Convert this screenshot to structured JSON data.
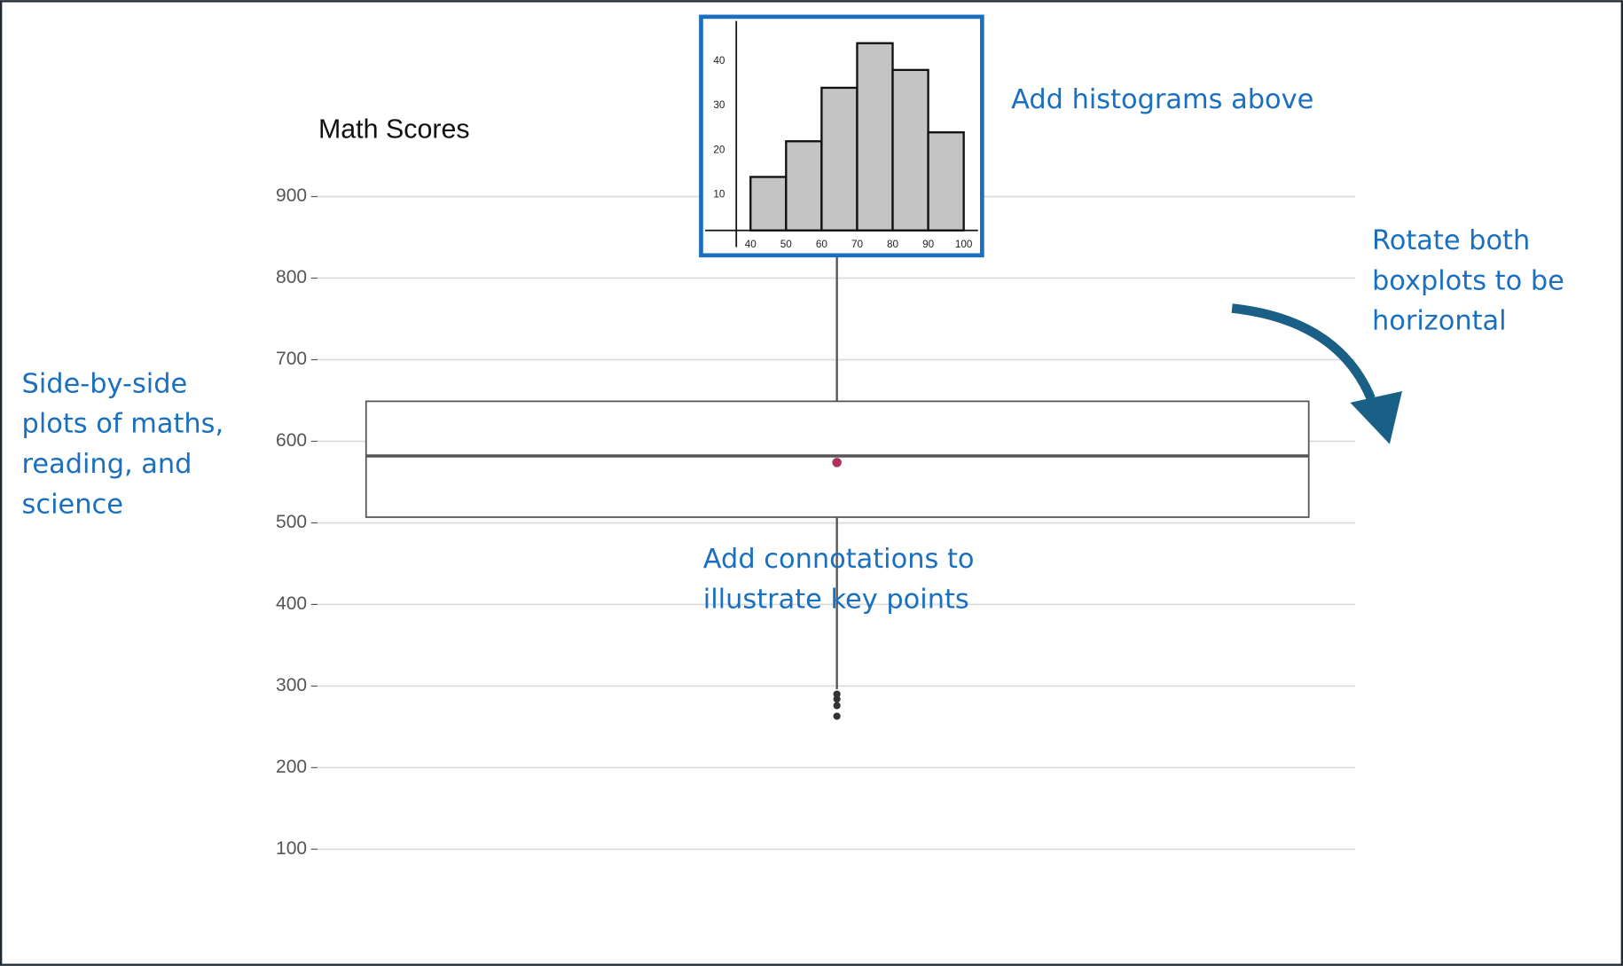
{
  "chart_data": [
    {
      "type": "box",
      "title": "Math Scores",
      "ylim": [
        60,
        950
      ],
      "yticks": [
        100,
        200,
        300,
        400,
        500,
        600,
        700,
        800,
        900
      ],
      "grid": true,
      "q1": 507,
      "median": 582,
      "q3": 649,
      "mean": 574,
      "whisker_low": 296,
      "whisker_high": 850,
      "outliers": [
        290,
        284,
        276,
        263
      ],
      "color": "#555555",
      "mean_color": "#b03060",
      "outlier_color": "#333333"
    },
    {
      "type": "histogram",
      "bins": [
        40,
        50,
        60,
        70,
        80,
        90,
        100
      ],
      "values": [
        14,
        22,
        34,
        44,
        38,
        24
      ],
      "xlim": [
        36,
        104
      ],
      "ylim": [
        2,
        49
      ],
      "yticks": [
        10,
        20,
        30,
        40
      ],
      "xticks": [
        40,
        50,
        60,
        70,
        80,
        90,
        100
      ],
      "color": "#c4c4c4"
    }
  ],
  "annotations": {
    "histograms": [
      "Add histograms above"
    ],
    "rotate": [
      "Rotate both",
      "boxplots to be",
      "horizontal"
    ],
    "side_by_side": [
      "Side-by-side",
      "plots of maths,",
      "reading, and",
      "science"
    ],
    "connotations": [
      "Add connotations to",
      "illustrate key points"
    ]
  }
}
